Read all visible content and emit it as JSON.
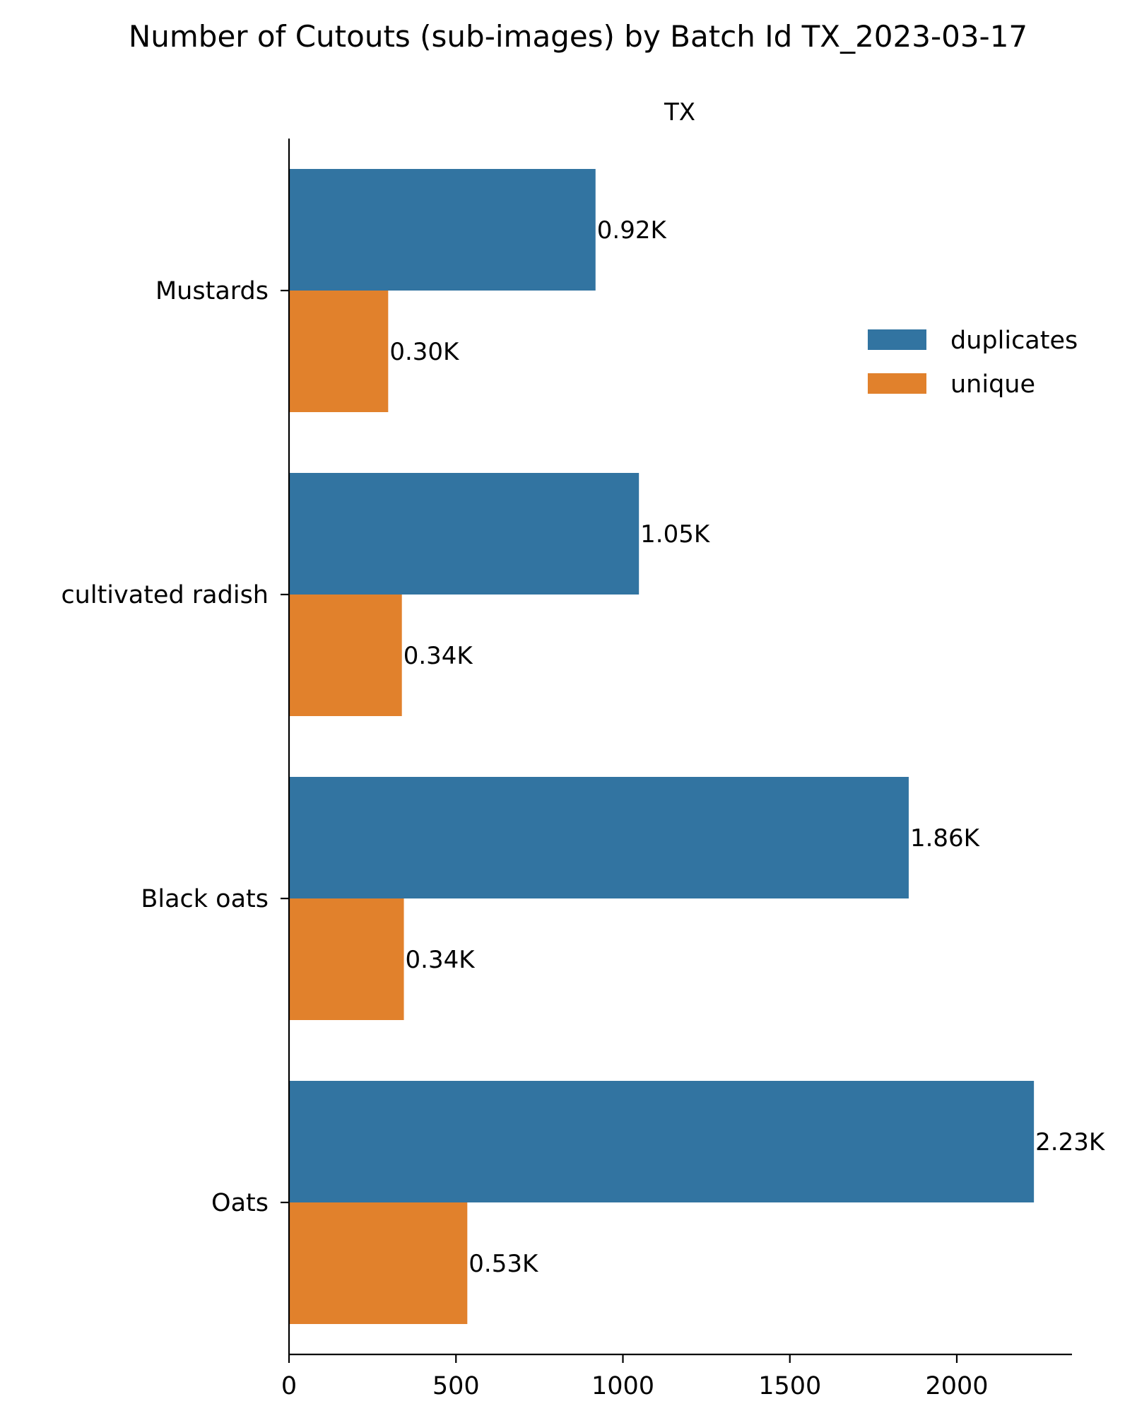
{
  "chart_data": {
    "type": "bar",
    "orientation": "horizontal",
    "title": "Number of Cutouts (sub-images) by Batch Id TX_2023-03-17",
    "subtitle": "TX",
    "xlabel": "",
    "ylabel": "",
    "xlim": [
      0,
      2345
    ],
    "xticks": [
      0,
      500,
      1000,
      1500,
      2000
    ],
    "categories": [
      "Mustards",
      "cultivated radish",
      "Black oats",
      "Oats"
    ],
    "series": [
      {
        "name": "duplicates",
        "color": "#3274a1",
        "values": [
          918,
          1048,
          1856,
          2231
        ],
        "labels": [
          "0.92K",
          "1.05K",
          "1.86K",
          "2.23K"
        ]
      },
      {
        "name": "unique",
        "color": "#e1812c",
        "values": [
          297,
          338,
          344,
          534
        ],
        "labels": [
          "0.30K",
          "0.34K",
          "0.34K",
          "0.53K"
        ]
      }
    ],
    "legend_position": "upper right",
    "grid": false
  }
}
